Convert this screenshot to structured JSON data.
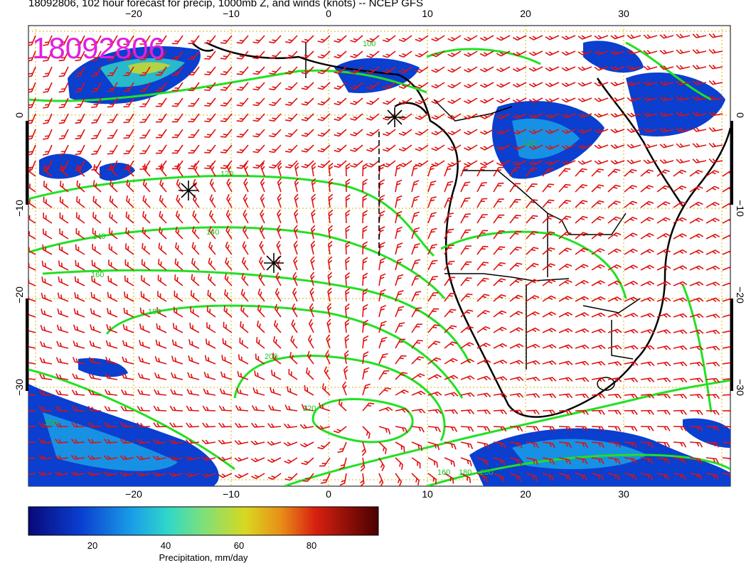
{
  "header": {
    "title": "18092806, 102 hour forecast for precip, 1000mb Z, and winds (knots) -- NCEP GFS",
    "stamp": "18092806"
  },
  "axes": {
    "lon_ticks": [
      "−20",
      "−10",
      "0",
      "10",
      "20",
      "30"
    ],
    "lat_ticks": [
      "0",
      "−10",
      "−20",
      "−30"
    ]
  },
  "contour_labels": [
    "120",
    "140",
    "140",
    "160",
    "180",
    "200",
    "220",
    "160",
    "180",
    "200",
    "120",
    "100",
    "100"
  ],
  "colorbar": {
    "ticks": [
      "20",
      "40",
      "60",
      "80"
    ],
    "label": "Precipitation, mm/day",
    "colors": [
      "#08087a",
      "#0a3fd0",
      "#1aa0e8",
      "#30d8c8",
      "#7ee07a",
      "#d8d820",
      "#e89018",
      "#d82010",
      "#7a0000"
    ]
  },
  "legend_colors": {
    "contours": "#22e022",
    "wind_barbs": "#e01010",
    "stamp": "#e020e0"
  }
}
